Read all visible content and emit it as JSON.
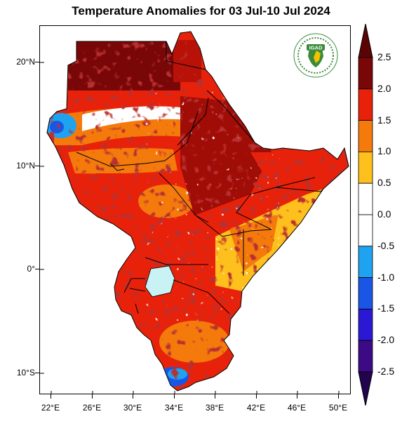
{
  "title": "Temperature Anomalies for 03 Jul-10 Jul 2024",
  "map": {
    "region": "Greater Horn of Africa",
    "variable": "Temperature anomaly",
    "lat_ticks": [
      "20°N",
      "10°N",
      "0°",
      "10°S"
    ],
    "lon_ticks": [
      "22°E",
      "26°E",
      "30°E",
      "34°E",
      "38°E",
      "42°E",
      "46°E",
      "50°E"
    ],
    "lat_range": [
      -12,
      23
    ],
    "lon_range": [
      21.5,
      51.5
    ],
    "ocean_color": "#ffffff",
    "lake_color": "#c8f2f4"
  },
  "colorbar": {
    "labels": [
      "2.5",
      "2.0",
      "1.5",
      "1.0",
      "0.5",
      "0.0",
      "-0.5",
      "-1.0",
      "-1.5",
      "-2.0",
      "-2.5"
    ],
    "colors": [
      "#7a0707",
      "#e8220a",
      "#f47a0c",
      "#fec01c",
      "#ffffff",
      "#ffffff",
      "#1ea3f0",
      "#1a56e6",
      "#2a18d4",
      "#3d0a86"
    ],
    "over_color": "#5c0404",
    "under_color": "#22034d"
  },
  "logo": {
    "text": "IGAD",
    "icon": "igad-logo"
  }
}
